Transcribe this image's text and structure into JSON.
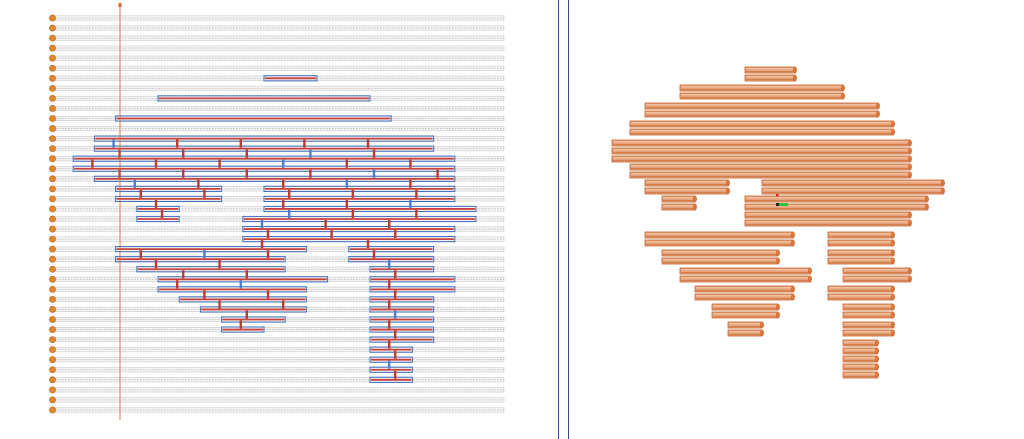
{
  "colors": {
    "background": "#ffffff",
    "divider": "#2b4f8f",
    "scaffold": "#c9c9c9",
    "helix_staple": "#c8413a",
    "helix_scaffold": "#3f6fbf",
    "helix_end": "#e0892a",
    "crossover": "#c0392b",
    "crossover_blue": "#4a7fd0",
    "guide_line": "#d4622e",
    "cylinder": "#e6a279",
    "cylinder_edge": "#c9622e",
    "cylinder_cap": "#d97a3a",
    "marker_red": "#e22222",
    "marker_green": "#34c23a",
    "marker_dark": "#222222"
  },
  "icons": {
    "helix_end": "orange-circle-icon",
    "axis_marker": "axis-marker-icon"
  },
  "lattice": {
    "rows": 40
  },
  "strand_rows": [
    {
      "row": 6,
      "segs": [
        [
          10,
          12.5
        ]
      ]
    },
    {
      "row": 8,
      "segs": [
        [
          5,
          15
        ]
      ]
    },
    {
      "row": 10,
      "segs": [
        [
          3,
          16
        ]
      ]
    },
    {
      "row": 12,
      "segs": [
        [
          2,
          18
        ]
      ]
    },
    {
      "row": 13,
      "segs": [
        [
          2,
          18
        ]
      ]
    },
    {
      "row": 14,
      "segs": [
        [
          1,
          19
        ]
      ]
    },
    {
      "row": 15,
      "segs": [
        [
          1,
          19
        ]
      ]
    },
    {
      "row": 16,
      "segs": [
        [
          2,
          19
        ]
      ]
    },
    {
      "row": 17,
      "segs": [
        [
          3,
          8
        ],
        [
          10,
          19
        ]
      ]
    },
    {
      "row": 18,
      "segs": [
        [
          3,
          8
        ],
        [
          10,
          19
        ]
      ]
    },
    {
      "row": 19,
      "segs": [
        [
          4,
          6
        ],
        [
          10,
          20
        ]
      ]
    },
    {
      "row": 20,
      "segs": [
        [
          4,
          6
        ],
        [
          9,
          20
        ]
      ]
    },
    {
      "row": 21,
      "segs": [
        [
          9,
          19
        ]
      ]
    },
    {
      "row": 22,
      "segs": [
        [
          9,
          19
        ]
      ]
    },
    {
      "row": 23,
      "segs": [
        [
          3,
          12
        ],
        [
          14,
          18
        ]
      ]
    },
    {
      "row": 24,
      "segs": [
        [
          3,
          11
        ],
        [
          14,
          18
        ]
      ]
    },
    {
      "row": 25,
      "segs": [
        [
          4,
          11
        ],
        [
          15,
          18
        ]
      ]
    },
    {
      "row": 26,
      "segs": [
        [
          5,
          13
        ],
        [
          15,
          19
        ]
      ]
    },
    {
      "row": 27,
      "segs": [
        [
          5,
          12
        ],
        [
          15,
          19
        ]
      ]
    },
    {
      "row": 28,
      "segs": [
        [
          6,
          12
        ],
        [
          15,
          18
        ]
      ]
    },
    {
      "row": 29,
      "segs": [
        [
          7,
          12
        ],
        [
          15,
          18
        ]
      ]
    },
    {
      "row": 30,
      "segs": [
        [
          8,
          11
        ],
        [
          15,
          18
        ]
      ]
    },
    {
      "row": 31,
      "segs": [
        [
          8,
          10
        ],
        [
          15,
          18
        ]
      ]
    },
    {
      "row": 32,
      "segs": [
        [
          15,
          18
        ]
      ]
    },
    {
      "row": 33,
      "segs": [
        [
          15,
          17
        ]
      ]
    },
    {
      "row": 34,
      "segs": [
        [
          15,
          17
        ]
      ]
    },
    {
      "row": 35,
      "segs": [
        [
          15,
          17
        ]
      ]
    },
    {
      "row": 36,
      "segs": [
        [
          15,
          17
        ]
      ]
    }
  ],
  "cylinders": [
    [
      745,
      70,
      795
    ],
    [
      745,
      78,
      795
    ],
    [
      680,
      88,
      843
    ],
    [
      680,
      96,
      843
    ],
    [
      645,
      106,
      878
    ],
    [
      645,
      114,
      878
    ],
    [
      630,
      124,
      893
    ],
    [
      630,
      132,
      893
    ],
    [
      612,
      143,
      910
    ],
    [
      612,
      151,
      910
    ],
    [
      612,
      159,
      910
    ],
    [
      630,
      167,
      910
    ],
    [
      630,
      175,
      910
    ],
    [
      645,
      183,
      728
    ],
    [
      762,
      183,
      943
    ],
    [
      645,
      191,
      728
    ],
    [
      762,
      191,
      943
    ],
    [
      662,
      199,
      695
    ],
    [
      745,
      199,
      927
    ],
    [
      662,
      207,
      695
    ],
    [
      745,
      207,
      927
    ],
    [
      745,
      215,
      910
    ],
    [
      745,
      223,
      910
    ],
    [
      645,
      235,
      793
    ],
    [
      828,
      235,
      893
    ],
    [
      645,
      243,
      793
    ],
    [
      828,
      243,
      893
    ],
    [
      662,
      253,
      778
    ],
    [
      828,
      253,
      893
    ],
    [
      662,
      261,
      778
    ],
    [
      828,
      261,
      893
    ],
    [
      680,
      271,
      810
    ],
    [
      843,
      271,
      910
    ],
    [
      680,
      279,
      810
    ],
    [
      843,
      279,
      910
    ],
    [
      695,
      289,
      793
    ],
    [
      828,
      289,
      893
    ],
    [
      695,
      297,
      793
    ],
    [
      828,
      297,
      893
    ],
    [
      712,
      307,
      778
    ],
    [
      843,
      307,
      893
    ],
    [
      712,
      315,
      778
    ],
    [
      843,
      315,
      893
    ],
    [
      728,
      325,
      762
    ],
    [
      843,
      325,
      893
    ],
    [
      728,
      333,
      762
    ],
    [
      843,
      333,
      893
    ],
    [
      843,
      343,
      877
    ],
    [
      843,
      351,
      877
    ],
    [
      843,
      359,
      877
    ],
    [
      843,
      367,
      877
    ],
    [
      843,
      375,
      877
    ]
  ]
}
